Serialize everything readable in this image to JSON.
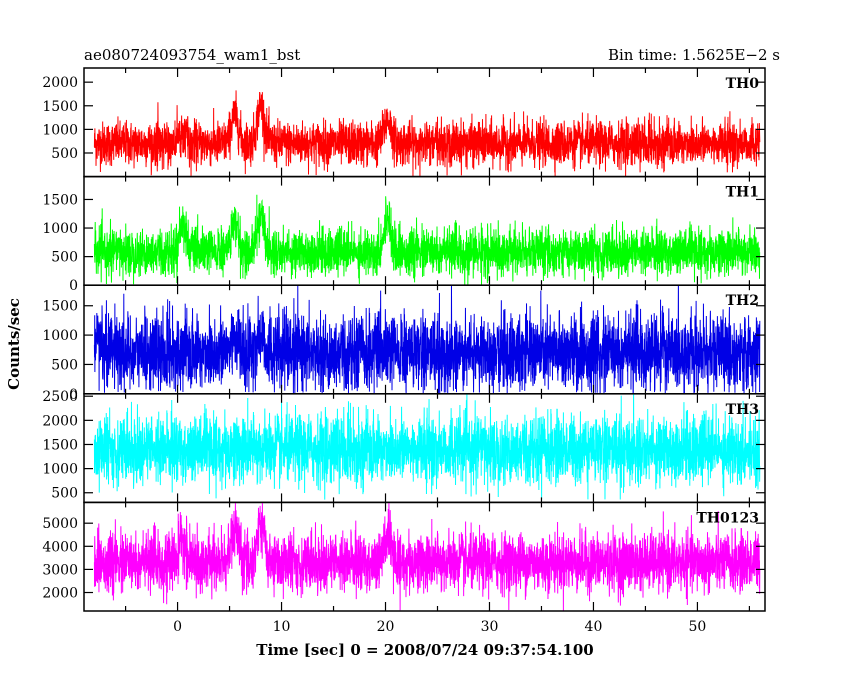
{
  "header": {
    "left_title": "ae080724093754_wam1_bst",
    "right_title": "Bin time: 1.5625E−2 s"
  },
  "colors": {
    "TH0": "#ff0000",
    "TH1": "#00ff00",
    "TH2": "#0000e6",
    "TH3": "#00ffff",
    "TH0123": "#ff00ff"
  },
  "chart_data": {
    "type": "line",
    "xlabel": "Time [sec] 0 = 2008/07/24 09:37:54.100",
    "ylabel": "Counts/sec",
    "xlim": [
      -9,
      56.5
    ],
    "xticks": [
      0,
      10,
      20,
      30,
      40,
      50
    ],
    "x_sampling": {
      "start": -8,
      "end": 56,
      "bin": 0.015625
    },
    "panels": [
      {
        "name": "TH0",
        "ylim": [
          0,
          2300
        ],
        "yticks": [
          500,
          1000,
          1500,
          2000
        ],
        "baseline_mean": 700,
        "noise_sigma": 230,
        "floor": 0,
        "peaks": [
          {
            "x": 5.5,
            "height": 600
          },
          {
            "x": 8.0,
            "height": 800
          },
          {
            "x": 0.5,
            "height": 250
          },
          {
            "x": 20.2,
            "height": 500
          }
        ]
      },
      {
        "name": "TH1",
        "ylim": [
          0,
          1900
        ],
        "yticks": [
          0,
          500,
          1000,
          1500
        ],
        "baseline_mean": 580,
        "noise_sigma": 200,
        "floor": 0,
        "peaks": [
          {
            "x": 5.5,
            "height": 500
          },
          {
            "x": 8.0,
            "height": 650
          },
          {
            "x": 0.5,
            "height": 500
          },
          {
            "x": 20.2,
            "height": 600
          }
        ]
      },
      {
        "name": "TH2",
        "ylim": [
          0,
          1850
        ],
        "yticks": [
          0,
          500,
          1000,
          1500
        ],
        "baseline_mean": 700,
        "noise_sigma": 320,
        "floor": 0,
        "peaks": [
          {
            "x": 5.5,
            "height": 300
          },
          {
            "x": 8.0,
            "height": 300
          }
        ]
      },
      {
        "name": "TH3",
        "ylim": [
          300,
          2550
        ],
        "yticks": [
          500,
          1000,
          1500,
          2000,
          2500
        ],
        "baseline_mean": 1400,
        "noise_sigma": 350,
        "floor": 350,
        "peaks": []
      },
      {
        "name": "TH0123",
        "ylim": [
          1200,
          5900
        ],
        "yticks": [
          2000,
          3000,
          4000,
          5000
        ],
        "baseline_mean": 3300,
        "noise_sigma": 620,
        "floor": 1200,
        "peaks": [
          {
            "x": 5.5,
            "height": 1400
          },
          {
            "x": 8.0,
            "height": 1700
          },
          {
            "x": 0.5,
            "height": 800
          },
          {
            "x": 20.2,
            "height": 1000
          }
        ]
      }
    ]
  }
}
